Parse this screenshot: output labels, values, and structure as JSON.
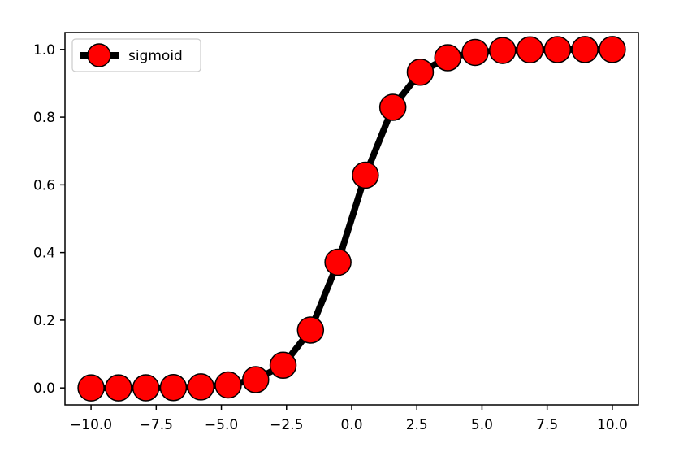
{
  "chart_data": {
    "type": "line",
    "xlim": [
      -11.0,
      11.0
    ],
    "ylim": [
      -0.05,
      1.05
    ],
    "x_ticks": [
      -10.0,
      -7.5,
      -5.0,
      -2.5,
      0.0,
      2.5,
      5.0,
      7.5,
      10.0
    ],
    "x_tick_labels": [
      "−10.0",
      "−7.5",
      "−5.0",
      "−2.5",
      "0.0",
      "2.5",
      "5.0",
      "7.5",
      "10.0"
    ],
    "y_ticks": [
      0.0,
      0.2,
      0.4,
      0.6,
      0.8,
      1.0
    ],
    "y_tick_labels": [
      "0.0",
      "0.2",
      "0.4",
      "0.6",
      "0.8",
      "1.0"
    ],
    "grid": false,
    "legend_position": "top-left",
    "series": [
      {
        "name": "sigmoid",
        "line_color": "#000000",
        "marker_color": "#ff0000",
        "marker_edge_color": "#000000",
        "x": [
          -10.0,
          -8.947,
          -7.895,
          -6.842,
          -5.789,
          -4.737,
          -3.684,
          -2.632,
          -1.579,
          -0.526,
          0.526,
          1.579,
          2.632,
          3.684,
          4.737,
          5.789,
          6.842,
          7.895,
          8.947,
          10.0
        ],
        "y": [
          5e-05,
          0.00013,
          0.00037,
          0.00107,
          0.00305,
          0.0087,
          0.0245,
          0.0671,
          0.1709,
          0.3714,
          0.6286,
          0.8291,
          0.9329,
          0.9755,
          0.9913,
          0.99695,
          0.99893,
          0.99963,
          0.99987,
          0.99995
        ]
      }
    ]
  }
}
